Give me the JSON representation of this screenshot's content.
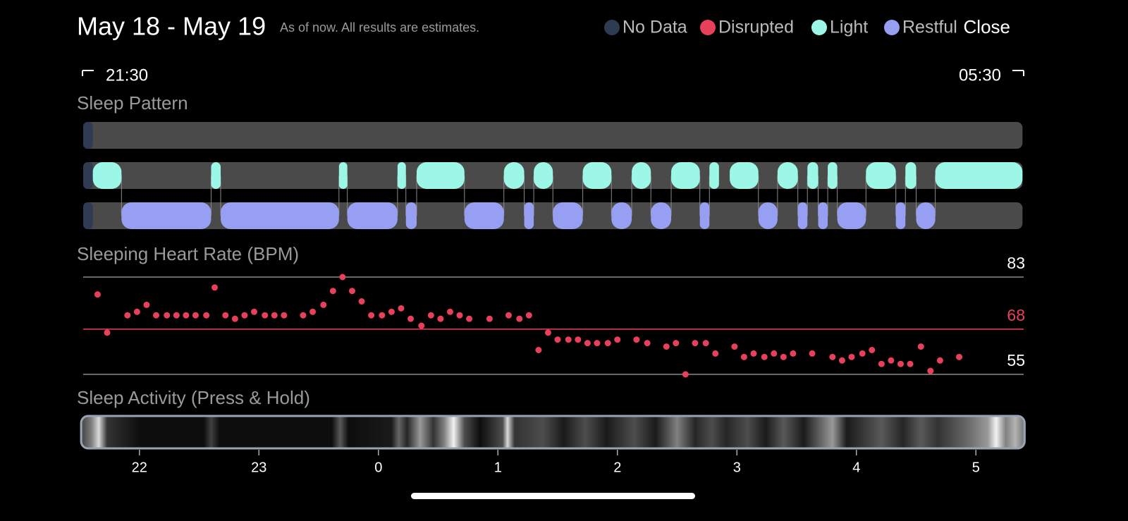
{
  "header": {
    "title": "May 18 - May 19",
    "subtitle": "As of now. All results are estimates.",
    "legend": [
      {
        "name": "No Data",
        "color": "#2f3b52"
      },
      {
        "name": "Disrupted",
        "color": "#e8405a"
      },
      {
        "name": "Light",
        "color": "#9cf7e6"
      },
      {
        "name": "Restful",
        "color": "#979ff2"
      }
    ],
    "close": "Close"
  },
  "time_range": {
    "start": "21:30",
    "end": "05:30"
  },
  "time_axis": {
    "xlim": [
      21.5,
      29.5
    ],
    "xticks": [
      22,
      23,
      {
        "value": 24,
        "label": "0"
      },
      {
        "value": 25,
        "label": "1"
      },
      {
        "value": 26,
        "label": "2"
      },
      {
        "value": 27,
        "label": "3"
      },
      {
        "value": 28,
        "label": "4"
      },
      {
        "value": 29,
        "label": "5"
      }
    ]
  },
  "sleep_pattern": {
    "title": "Sleep Pattern",
    "span": [
      21.53,
      29.39
    ],
    "no_data": [
      [
        21.53,
        21.61
      ]
    ],
    "rows": [
      {
        "stage": 1,
        "segments": []
      },
      {
        "stage": 2,
        "segments": [
          [
            21.61,
            21.85
          ],
          [
            22.6,
            22.68
          ],
          [
            23.67,
            23.74
          ],
          [
            24.16,
            24.23
          ],
          [
            24.32,
            24.72
          ],
          [
            25.05,
            25.22
          ],
          [
            25.3,
            25.46
          ],
          [
            25.71,
            25.95
          ],
          [
            26.12,
            26.28
          ],
          [
            26.45,
            26.69
          ],
          [
            26.77,
            26.85
          ],
          [
            26.94,
            27.18
          ],
          [
            27.34,
            27.51
          ],
          [
            27.59,
            27.68
          ],
          [
            27.76,
            27.84
          ],
          [
            28.08,
            28.33
          ],
          [
            28.41,
            28.5
          ],
          [
            28.66,
            29.39
          ]
        ]
      },
      {
        "stage": 3,
        "segments": [
          [
            21.85,
            22.6
          ],
          [
            22.68,
            23.67
          ],
          [
            23.74,
            24.16
          ],
          [
            24.23,
            24.32
          ],
          [
            24.72,
            25.05
          ],
          [
            25.22,
            25.3
          ],
          [
            25.46,
            25.71
          ],
          [
            25.95,
            26.12
          ],
          [
            26.28,
            26.45
          ],
          [
            26.69,
            26.77
          ],
          [
            27.18,
            27.34
          ],
          [
            27.51,
            27.59
          ],
          [
            27.68,
            27.76
          ],
          [
            27.84,
            28.08
          ],
          [
            28.33,
            28.41
          ],
          [
            28.5,
            28.66
          ]
        ]
      }
    ]
  },
  "heart_rate": {
    "type": "scatter",
    "title": "Sleeping Heart Rate (BPM)",
    "color": "#e8405a",
    "ylim": [
      55,
      83
    ],
    "yticks": [
      55,
      68,
      83
    ],
    "tick_colors": [
      "#ffffff",
      "#e8405a",
      "#ffffff"
    ],
    "x": [
      21.65,
      21.73,
      21.9,
      21.98,
      22.06,
      22.14,
      22.23,
      22.31,
      22.39,
      22.47,
      22.56,
      22.63,
      22.72,
      22.8,
      22.88,
      22.96,
      23.05,
      23.13,
      23.21,
      23.37,
      23.45,
      23.54,
      23.62,
      23.7,
      23.78,
      23.86,
      23.94,
      24.03,
      24.11,
      24.19,
      24.27,
      24.36,
      24.44,
      24.52,
      24.6,
      24.68,
      24.76,
      24.93,
      25.09,
      25.18,
      25.26,
      25.34,
      25.42,
      25.5,
      25.59,
      25.67,
      25.75,
      25.83,
      25.92,
      26.0,
      26.16,
      26.25,
      26.41,
      26.49,
      26.57,
      26.65,
      26.74,
      26.82,
      26.98,
      27.06,
      27.14,
      27.23,
      27.31,
      27.39,
      27.47,
      27.63,
      27.8,
      27.88,
      27.96,
      28.05,
      28.13,
      28.21,
      28.29,
      28.37,
      28.45,
      28.54,
      28.62,
      28.7,
      28.86
    ],
    "values": [
      78,
      67,
      72,
      73,
      75,
      72,
      72,
      72,
      72,
      72,
      72,
      80,
      72,
      71,
      72,
      73,
      72,
      72,
      72,
      72,
      73,
      75,
      79,
      83,
      79,
      76,
      72,
      72,
      73,
      74,
      71,
      69,
      72,
      71,
      73,
      72,
      71,
      71,
      72,
      71,
      72,
      62,
      67,
      65,
      65,
      65,
      64,
      64,
      64,
      65,
      65,
      64,
      63,
      64,
      55,
      64,
      64,
      61,
      63,
      60,
      61,
      60,
      61,
      60,
      61,
      61,
      60,
      59,
      60,
      61,
      62,
      58,
      59,
      58,
      58,
      63,
      56,
      59,
      60
    ]
  },
  "activity": {
    "title": "Sleep Activity (Press & Hold)",
    "span": [
      21.53,
      29.39
    ],
    "x": [
      21.53,
      21.6,
      21.66,
      21.73,
      22.01,
      22.54,
      22.6,
      22.67,
      23.61,
      23.68,
      23.75,
      24.11,
      24.17,
      24.24,
      24.35,
      24.46,
      24.55,
      24.63,
      24.72,
      24.85,
      25.04,
      25.08,
      25.14,
      25.38,
      25.55,
      25.73,
      25.91,
      26.14,
      26.32,
      26.5,
      26.65,
      26.79,
      26.91,
      27.09,
      27.24,
      27.39,
      27.56,
      27.8,
      27.92,
      28.21,
      28.39,
      28.54,
      28.68,
      28.92,
      29.1,
      29.17,
      29.25,
      29.33,
      29.39
    ],
    "values": [
      0.3,
      0.5,
      0.85,
      0.2,
      0.05,
      0.05,
      0.25,
      0.05,
      0.05,
      0.35,
      0.05,
      0.1,
      0.4,
      0.15,
      0.6,
      0.2,
      0.5,
      0.95,
      0.3,
      0.05,
      0.3,
      0.85,
      0.2,
      0.3,
      0.1,
      0.3,
      0.1,
      0.3,
      0.1,
      0.5,
      0.15,
      0.3,
      0.15,
      0.3,
      0.1,
      0.35,
      0.1,
      0.6,
      0.1,
      0.35,
      0.15,
      0.35,
      0.2,
      0.4,
      0.6,
      0.95,
      0.5,
      0.7,
      0.5
    ]
  }
}
